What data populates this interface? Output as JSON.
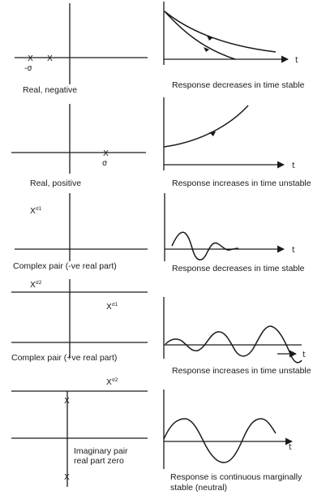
{
  "axis_labels": {
    "time": "t",
    "sigma": "σ",
    "neg_sigma": "-σ"
  },
  "pole_labels": {
    "x": "X",
    "sup1": "σ1",
    "sup2": "σ2"
  },
  "rows": [
    {
      "pole_label": "Real, negative",
      "response_label": "Response decreases in time stable"
    },
    {
      "pole_label": "Real, positive",
      "response_label": "Response increases in time unstable"
    },
    {
      "pole_label": "Complex pair (-ve real part)",
      "response_label": "Response decreases in time stable"
    },
    {
      "pole_label": "Complex pair (+ve real part)",
      "response_label": "Response increases in time unstable"
    },
    {
      "pole_label_line1": "Imaginary pair",
      "pole_label_line2": "real part zero",
      "response_label_line1": "Response is continuous marginally",
      "response_label_line2": "stable (neutral)"
    }
  ]
}
